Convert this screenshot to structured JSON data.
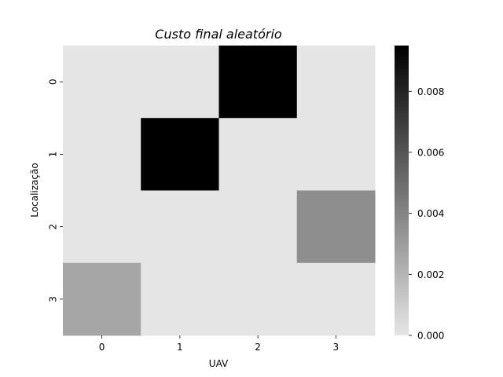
{
  "chart_data": {
    "type": "heatmap",
    "title": "Custo final aleatório",
    "xlabel": "UAV",
    "ylabel": "Localização",
    "x_categories": [
      "0",
      "1",
      "2",
      "3"
    ],
    "y_categories": [
      "0",
      "1",
      "2",
      "3"
    ],
    "values": [
      [
        0.0,
        0.0,
        0.0095,
        0.0
      ],
      [
        0.0,
        0.0095,
        0.0,
        0.0
      ],
      [
        0.0,
        0.0,
        0.0,
        0.0036
      ],
      [
        0.0026,
        0.0,
        0.0,
        0.0
      ]
    ],
    "colorbar": {
      "vmin": 0.0,
      "vmax": 0.0095,
      "ticks": [
        0.0,
        0.002,
        0.004,
        0.006,
        0.008
      ],
      "tick_labels": [
        "0.000",
        "0.002",
        "0.004",
        "0.006",
        "0.008"
      ],
      "colormap": "light-gray-to-black",
      "low_color": "#e5e5e5",
      "high_color": "#000000"
    },
    "grid": false
  }
}
